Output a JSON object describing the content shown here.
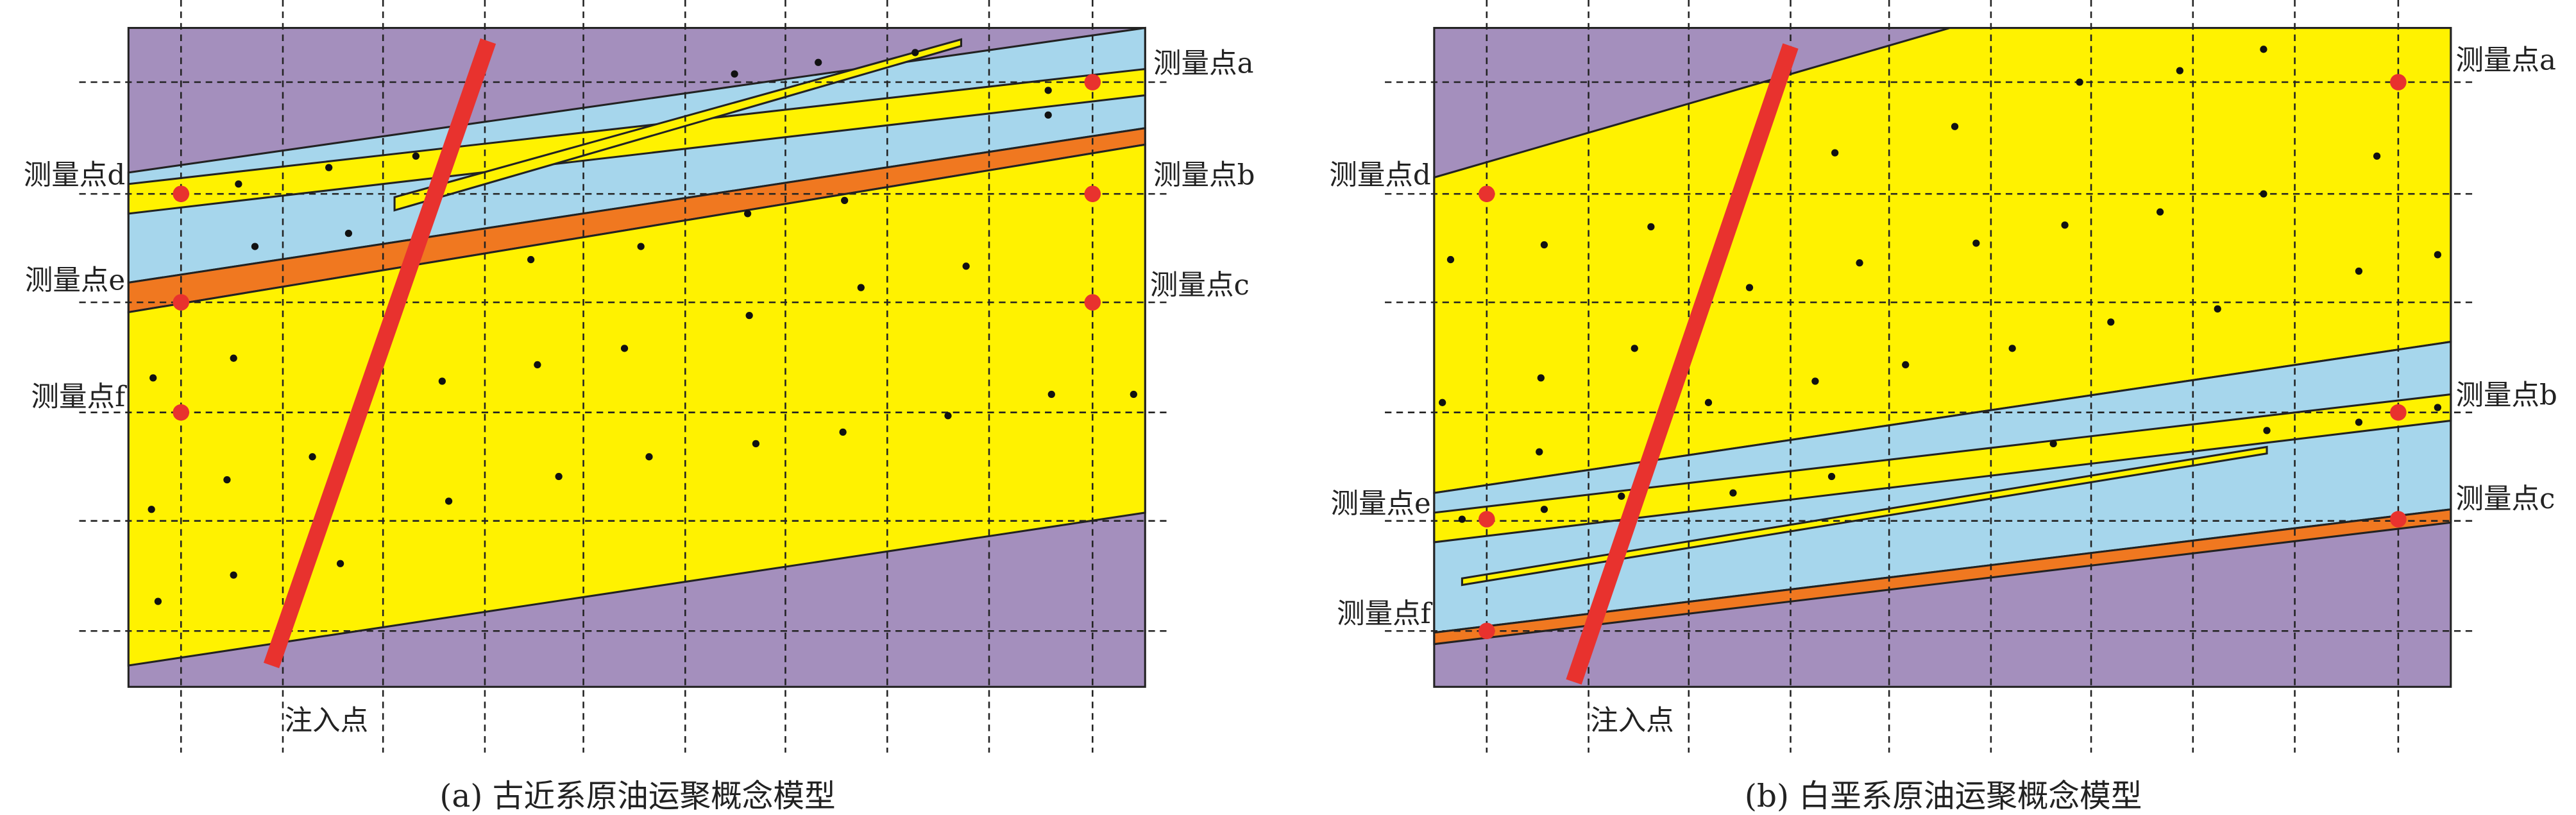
{
  "panels": [
    {
      "caption": "(a) 古近系原油运聚概念模型",
      "injection_label": "注入点",
      "measure_points": [
        "测量点a",
        "测量点b",
        "测量点c",
        "测量点d",
        "测量点e",
        "测量点f"
      ]
    },
    {
      "caption": "(b) 白垩系原油运聚概念模型",
      "injection_label": "注入点",
      "measure_points": [
        "测量点a",
        "测量点b",
        "测量点c",
        "测量点d",
        "测量点e",
        "测量点f"
      ]
    }
  ]
}
